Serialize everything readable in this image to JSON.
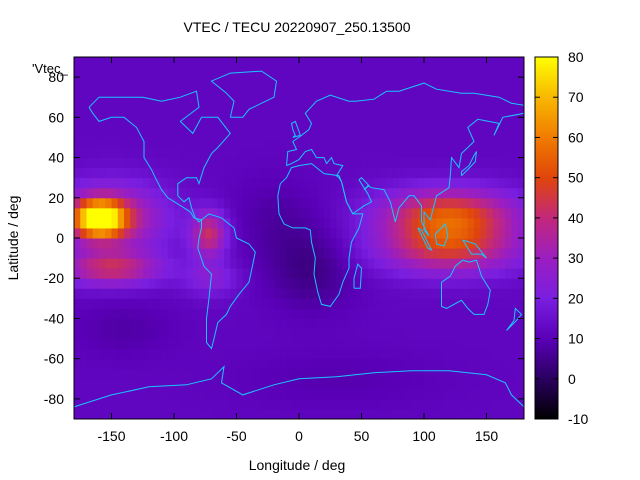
{
  "chart_data": {
    "type": "heatmap",
    "title": "VTEC / TECU 20220907_250.13500",
    "xlabel": "Longitude / deg",
    "ylabel": "Latitude / deg",
    "legend_key": "'Vtec_",
    "xlim": [
      -180,
      180
    ],
    "ylim": [
      -90,
      90
    ],
    "x_ticks": [
      -150,
      -100,
      -50,
      0,
      50,
      100,
      150
    ],
    "y_ticks": [
      -80,
      -60,
      -40,
      -20,
      0,
      20,
      40,
      60,
      80
    ],
    "colorbar": {
      "range": [
        -10,
        80
      ],
      "ticks": [
        -10,
        0,
        10,
        20,
        30,
        40,
        50,
        60,
        70,
        80
      ],
      "palette": [
        "#000000",
        "#2a0060",
        "#5a00b8",
        "#7a1ee0",
        "#9b1ec0",
        "#c2287a",
        "#e0450a",
        "#f07c00",
        "#f8b800",
        "#ffff00"
      ]
    },
    "background_value": 12,
    "features": [
      {
        "name": "Pacific anomaly core",
        "lon": -160,
        "lat": 10,
        "peak": 62,
        "sigma_lon": 14,
        "sigma_lat": 6
      },
      {
        "name": "Pacific north crest",
        "lon": -150,
        "lat": 10,
        "peak": 28,
        "sigma_lon": 30,
        "sigma_lat": 12
      },
      {
        "name": "Pacific south crest",
        "lon": -150,
        "lat": -15,
        "peak": 28,
        "sigma_lon": 28,
        "sigma_lat": 6
      },
      {
        "name": "South America crest",
        "lon": -72,
        "lat": 2,
        "peak": 30,
        "sigma_lon": 10,
        "sigma_lat": 8
      },
      {
        "name": "South America south crest",
        "lon": -70,
        "lat": -20,
        "peak": 12,
        "sigma_lon": 15,
        "sigma_lat": 6
      },
      {
        "name": "Indonesia crest north",
        "lon": 120,
        "lat": 12,
        "peak": 38,
        "sigma_lon": 38,
        "sigma_lat": 9
      },
      {
        "name": "Indonesia crest south",
        "lon": 120,
        "lat": -5,
        "peak": 32,
        "sigma_lon": 40,
        "sigma_lat": 9
      },
      {
        "name": "Africa trough",
        "lon": 10,
        "lat": -15,
        "peak": -8,
        "sigma_lon": 25,
        "sigma_lat": 15
      },
      {
        "name": "Atlantic trough",
        "lon": -20,
        "lat": 10,
        "peak": -4,
        "sigma_lon": 25,
        "sigma_lat": 15
      },
      {
        "name": "South Pacific trough",
        "lon": -140,
        "lat": -45,
        "peak": -4,
        "sigma_lon": 30,
        "sigma_lat": 10
      },
      {
        "name": "Antarctic trough",
        "lon": 30,
        "lat": -70,
        "peak": -3,
        "sigma_lon": 60,
        "sigma_lat": 10
      }
    ],
    "coastlines": [
      {
        "name": "north-america",
        "points": [
          [
            -168,
            65
          ],
          [
            -160,
            70
          ],
          [
            -140,
            70
          ],
          [
            -125,
            70
          ],
          [
            -110,
            68
          ],
          [
            -95,
            70
          ],
          [
            -82,
            73
          ],
          [
            -80,
            65
          ],
          [
            -95,
            58
          ],
          [
            -85,
            52
          ],
          [
            -78,
            60
          ],
          [
            -65,
            60
          ],
          [
            -55,
            52
          ],
          [
            -65,
            45
          ],
          [
            -70,
            42
          ],
          [
            -76,
            35
          ],
          [
            -80,
            27
          ],
          [
            -82,
            30
          ],
          [
            -90,
            30
          ],
          [
            -97,
            27
          ],
          [
            -97,
            21
          ],
          [
            -92,
            18
          ],
          [
            -88,
            20
          ],
          [
            -86,
            15
          ],
          [
            -83,
            10
          ],
          [
            -80,
            8
          ],
          [
            -78,
            9
          ],
          [
            -84,
            10
          ],
          [
            -87,
            13
          ],
          [
            -92,
            15
          ],
          [
            -105,
            20
          ],
          [
            -110,
            24
          ],
          [
            -115,
            30
          ],
          [
            -118,
            34
          ],
          [
            -124,
            40
          ],
          [
            -124,
            48
          ],
          [
            -130,
            55
          ],
          [
            -140,
            60
          ],
          [
            -150,
            60
          ],
          [
            -160,
            58
          ],
          [
            -165,
            62
          ],
          [
            -168,
            65
          ]
        ]
      },
      {
        "name": "south-america",
        "points": [
          [
            -78,
            9
          ],
          [
            -72,
            12
          ],
          [
            -62,
            10
          ],
          [
            -52,
            5
          ],
          [
            -50,
            0
          ],
          [
            -40,
            -3
          ],
          [
            -35,
            -7
          ],
          [
            -37,
            -13
          ],
          [
            -40,
            -22
          ],
          [
            -48,
            -28
          ],
          [
            -55,
            -34
          ],
          [
            -58,
            -38
          ],
          [
            -65,
            -42
          ],
          [
            -68,
            -50
          ],
          [
            -70,
            -55
          ],
          [
            -74,
            -52
          ],
          [
            -74,
            -40
          ],
          [
            -72,
            -30
          ],
          [
            -70,
            -18
          ],
          [
            -76,
            -14
          ],
          [
            -81,
            -5
          ],
          [
            -80,
            0
          ],
          [
            -78,
            5
          ],
          [
            -78,
            9
          ]
        ]
      },
      {
        "name": "greenland",
        "points": [
          [
            -55,
            60
          ],
          [
            -45,
            60
          ],
          [
            -40,
            64
          ],
          [
            -20,
            70
          ],
          [
            -18,
            78
          ],
          [
            -30,
            83
          ],
          [
            -55,
            82
          ],
          [
            -70,
            78
          ],
          [
            -58,
            72
          ],
          [
            -52,
            68
          ],
          [
            -55,
            60
          ]
        ]
      },
      {
        "name": "eurasia",
        "points": [
          [
            -10,
            36
          ],
          [
            -9,
            43
          ],
          [
            -2,
            44
          ],
          [
            -5,
            48
          ],
          [
            2,
            51
          ],
          [
            8,
            54
          ],
          [
            10,
            57
          ],
          [
            5,
            62
          ],
          [
            14,
            68
          ],
          [
            25,
            71
          ],
          [
            40,
            68
          ],
          [
            45,
            68
          ],
          [
            60,
            69
          ],
          [
            70,
            73
          ],
          [
            80,
            73
          ],
          [
            100,
            77
          ],
          [
            110,
            74
          ],
          [
            130,
            72
          ],
          [
            140,
            72
          ],
          [
            160,
            70
          ],
          [
            170,
            67
          ],
          [
            180,
            66
          ],
          [
            180,
            62
          ],
          [
            163,
            60
          ],
          [
            156,
            51
          ],
          [
            160,
            57
          ],
          [
            143,
            59
          ],
          [
            135,
            55
          ],
          [
            140,
            48
          ],
          [
            130,
            42
          ],
          [
            128,
            35
          ],
          [
            122,
            40
          ],
          [
            121,
            31
          ],
          [
            120,
            25
          ],
          [
            110,
            21
          ],
          [
            108,
            16
          ],
          [
            105,
            9
          ],
          [
            100,
            13
          ],
          [
            100,
            4
          ],
          [
            104,
            1
          ],
          [
            98,
            8
          ],
          [
            98,
            16
          ],
          [
            92,
            21
          ],
          [
            88,
            21
          ],
          [
            80,
            15
          ],
          [
            77,
            8
          ],
          [
            73,
            18
          ],
          [
            68,
            24
          ],
          [
            58,
            25
          ],
          [
            55,
            26
          ],
          [
            52,
            24
          ],
          [
            56,
            26
          ],
          [
            50,
            30
          ],
          [
            48,
            29
          ],
          [
            55,
            22
          ],
          [
            58,
            18
          ],
          [
            52,
            16
          ],
          [
            45,
            13
          ],
          [
            43,
            12
          ],
          [
            38,
            18
          ],
          [
            34,
            28
          ],
          [
            32,
            30
          ],
          [
            30,
            31
          ],
          [
            35,
            36
          ],
          [
            28,
            37
          ],
          [
            26,
            40
          ],
          [
            22,
            37
          ],
          [
            20,
            40
          ],
          [
            14,
            40
          ],
          [
            10,
            44
          ],
          [
            5,
            43
          ],
          [
            0,
            39
          ],
          [
            -6,
            37
          ],
          [
            -10,
            36
          ]
        ]
      },
      {
        "name": "africa",
        "points": [
          [
            -17,
            21
          ],
          [
            -16,
            12
          ],
          [
            -12,
            7
          ],
          [
            -5,
            5
          ],
          [
            5,
            5
          ],
          [
            9,
            4
          ],
          [
            10,
            -2
          ],
          [
            13,
            -10
          ],
          [
            12,
            -18
          ],
          [
            15,
            -27
          ],
          [
            18,
            -33
          ],
          [
            25,
            -34
          ],
          [
            32,
            -28
          ],
          [
            35,
            -22
          ],
          [
            40,
            -15
          ],
          [
            40,
            -10
          ],
          [
            42,
            -2
          ],
          [
            48,
            5
          ],
          [
            51,
            12
          ],
          [
            43,
            12
          ],
          [
            38,
            18
          ],
          [
            34,
            28
          ],
          [
            32,
            31
          ],
          [
            20,
            32
          ],
          [
            10,
            37
          ],
          [
            0,
            36
          ],
          [
            -6,
            35
          ],
          [
            -10,
            30
          ],
          [
            -15,
            27
          ],
          [
            -17,
            21
          ]
        ]
      },
      {
        "name": "madagascar",
        "points": [
          [
            44,
            -25
          ],
          [
            49,
            -25
          ],
          [
            50,
            -15
          ],
          [
            47,
            -13
          ],
          [
            44,
            -20
          ],
          [
            44,
            -25
          ]
        ]
      },
      {
        "name": "australia",
        "points": [
          [
            114,
            -22
          ],
          [
            114,
            -34
          ],
          [
            118,
            -35
          ],
          [
            130,
            -31
          ],
          [
            135,
            -35
          ],
          [
            140,
            -38
          ],
          [
            148,
            -38
          ],
          [
            151,
            -33
          ],
          [
            153,
            -26
          ],
          [
            146,
            -19
          ],
          [
            142,
            -11
          ],
          [
            136,
            -12
          ],
          [
            131,
            -11
          ],
          [
            125,
            -14
          ],
          [
            121,
            -19
          ],
          [
            114,
            -22
          ]
        ]
      },
      {
        "name": "new-guinea",
        "points": [
          [
            131,
            -1
          ],
          [
            141,
            -3
          ],
          [
            150,
            -10
          ],
          [
            146,
            -8
          ],
          [
            138,
            -8
          ],
          [
            131,
            -1
          ]
        ]
      },
      {
        "name": "borneo",
        "points": [
          [
            109,
            2
          ],
          [
            117,
            7
          ],
          [
            119,
            1
          ],
          [
            116,
            -4
          ],
          [
            110,
            -3
          ],
          [
            109,
            2
          ]
        ]
      },
      {
        "name": "sumatra",
        "points": [
          [
            95,
            5
          ],
          [
            98,
            4
          ],
          [
            106,
            -6
          ],
          [
            103,
            -5
          ],
          [
            95,
            5
          ]
        ]
      },
      {
        "name": "japan",
        "points": [
          [
            130,
            31
          ],
          [
            135,
            34
          ],
          [
            141,
            38
          ],
          [
            142,
            43
          ],
          [
            140,
            41
          ],
          [
            136,
            36
          ],
          [
            130,
            33
          ],
          [
            130,
            31
          ]
        ]
      },
      {
        "name": "britain",
        "points": [
          [
            -5,
            50
          ],
          [
            1,
            51
          ],
          [
            0,
            53
          ],
          [
            -3,
            58
          ],
          [
            -6,
            57
          ],
          [
            -5,
            54
          ],
          [
            -3,
            51
          ],
          [
            -5,
            50
          ]
        ]
      },
      {
        "name": "new-zealand",
        "points": [
          [
            166,
            -46
          ],
          [
            174,
            -41
          ],
          [
            178,
            -38
          ],
          [
            173,
            -35
          ],
          [
            172,
            -41
          ],
          [
            166,
            -46
          ]
        ]
      },
      {
        "name": "antarctica",
        "points": [
          [
            -180,
            -84
          ],
          [
            -150,
            -78
          ],
          [
            -120,
            -74
          ],
          [
            -90,
            -73
          ],
          [
            -70,
            -70
          ],
          [
            -60,
            -64
          ],
          [
            -62,
            -72
          ],
          [
            -45,
            -78
          ],
          [
            -20,
            -73
          ],
          [
            0,
            -70
          ],
          [
            30,
            -69
          ],
          [
            60,
            -67
          ],
          [
            90,
            -66
          ],
          [
            120,
            -66
          ],
          [
            150,
            -68
          ],
          [
            165,
            -72
          ],
          [
            170,
            -78
          ],
          [
            180,
            -84
          ]
        ]
      }
    ]
  }
}
